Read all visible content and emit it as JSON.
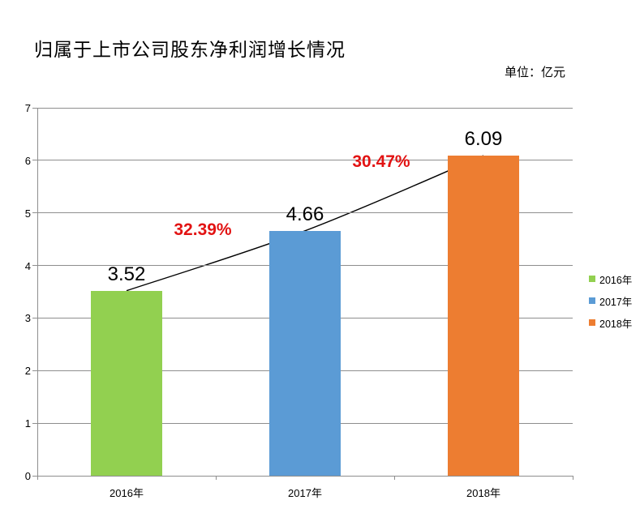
{
  "chart_data": {
    "type": "bar",
    "title": "归属于上市公司股东净利润增长情况",
    "unit_label": "单位：亿元",
    "categories": [
      "2016年",
      "2017年",
      "2018年"
    ],
    "values": [
      3.52,
      4.66,
      6.09
    ],
    "value_labels": [
      "3.52",
      "4.66",
      "6.09"
    ],
    "growth_labels": [
      {
        "text": "32.39%",
        "between": [
          0,
          1
        ]
      },
      {
        "text": "30.47%",
        "between": [
          1,
          2
        ]
      }
    ],
    "ylim": [
      0,
      7
    ],
    "yticks": [
      0,
      1,
      2,
      3,
      4,
      5,
      6,
      7
    ],
    "grid": true,
    "legend_position": "right",
    "legend": [
      {
        "label": "2016年",
        "color": "#92d050"
      },
      {
        "label": "2017年",
        "color": "#5b9bd5"
      },
      {
        "label": "2018年",
        "color": "#ed7d31"
      }
    ],
    "bar_colors": [
      "#92d050",
      "#5b9bd5",
      "#ed7d31"
    ],
    "trendline_color": "#000000",
    "growth_label_color": "#e21313",
    "axis_color": "#8e8e8e"
  }
}
